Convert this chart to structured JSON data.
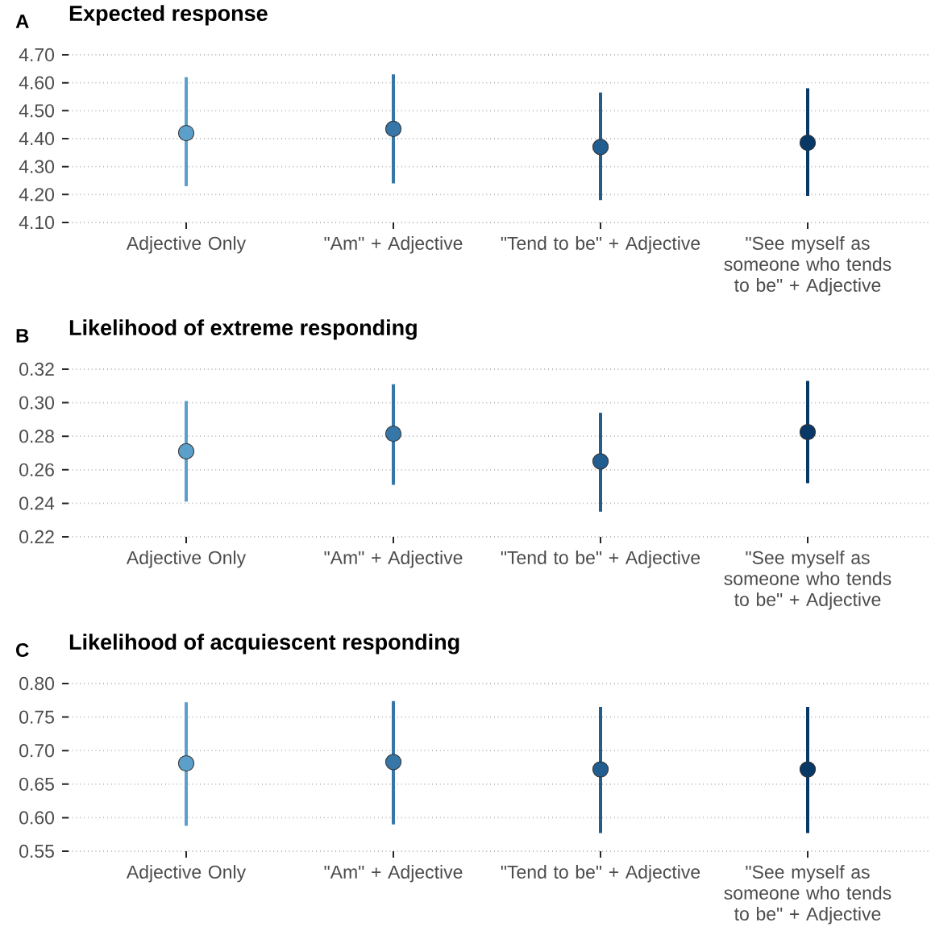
{
  "chart_data": [
    {
      "type": "scatter",
      "title": "Expected response",
      "annotations": [
        "A"
      ],
      "categories": [
        "Adjective Only",
        "\"Am\" + Adjective",
        "\"Tend to be\" + Adjective",
        "\"See myself as someone who tends to be\" + Adjective"
      ],
      "values": [
        4.42,
        4.435,
        4.37,
        4.385
      ],
      "errors": [
        [
          4.23,
          4.62
        ],
        [
          4.24,
          4.63
        ],
        [
          4.18,
          4.565
        ],
        [
          4.195,
          4.58
        ]
      ],
      "colors": [
        "#5b9fcb",
        "#3677a8",
        "#215d8f",
        "#083866"
      ],
      "ylim": [
        4.1,
        4.7
      ],
      "yticks": [
        {
          "value": 4.1,
          "label": "4.10"
        },
        {
          "value": 4.2,
          "label": "4.20"
        },
        {
          "value": 4.3,
          "label": "4.30"
        },
        {
          "value": 4.4,
          "label": "4.40"
        },
        {
          "value": 4.5,
          "label": "4.50"
        },
        {
          "value": 4.6,
          "label": "4.60"
        },
        {
          "value": 4.7,
          "label": "4.70"
        }
      ],
      "grid": "y",
      "marker": "circle"
    },
    {
      "type": "scatter",
      "title": "Likelihood of extreme responding",
      "annotations": [
        "B"
      ],
      "categories": [
        "Adjective Only",
        "\"Am\" + Adjective",
        "\"Tend to be\" + Adjective",
        "\"See myself as someone who tends to be\" + Adjective"
      ],
      "values": [
        0.271,
        0.2815,
        0.265,
        0.2825
      ],
      "errors": [
        [
          0.241,
          0.301
        ],
        [
          0.251,
          0.311
        ],
        [
          0.235,
          0.294
        ],
        [
          0.252,
          0.313
        ]
      ],
      "colors": [
        "#5b9fcb",
        "#3677a8",
        "#215d8f",
        "#083866"
      ],
      "ylim": [
        0.22,
        0.32
      ],
      "yticks": [
        0.22,
        0.24,
        0.26,
        0.28,
        {
          "value": 0.3,
          "label": "0.30"
        },
        0.32
      ],
      "grid": "y",
      "marker": "circle"
    },
    {
      "type": "scatter",
      "title": "Likelihood of acquiescent responding",
      "annotations": [
        "C"
      ],
      "categories": [
        "Adjective Only",
        "\"Am\" + Adjective",
        "\"Tend to be\" + Adjective",
        "\"See myself as someone who tends to be\" + Adjective"
      ],
      "values": [
        0.681,
        0.683,
        0.672,
        0.672
      ],
      "errors": [
        [
          0.588,
          0.772
        ],
        [
          0.59,
          0.774
        ],
        [
          0.577,
          0.765
        ],
        [
          0.577,
          0.765
        ]
      ],
      "colors": [
        "#5b9fcb",
        "#3677a8",
        "#215d8f",
        "#083866"
      ],
      "ylim": [
        0.55,
        0.8
      ],
      "yticks": [
        0.55,
        {
          "value": 0.6,
          "label": "0.60"
        },
        0.65,
        {
          "value": 0.7,
          "label": "0.70"
        },
        0.75,
        {
          "value": 0.8,
          "label": "0.80"
        }
      ],
      "grid": "y",
      "marker": "circle"
    }
  ]
}
